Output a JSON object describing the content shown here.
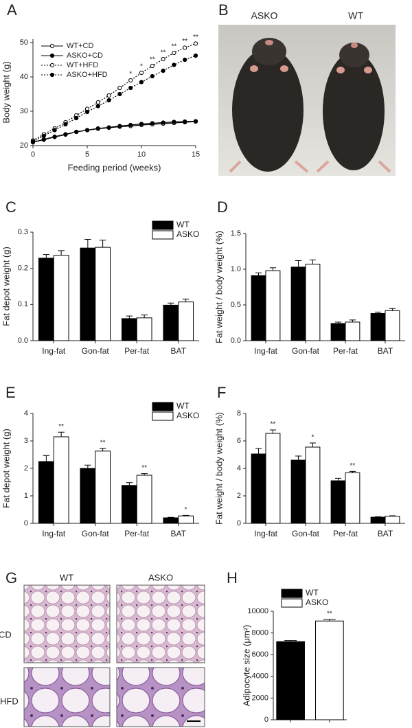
{
  "chart_data": [
    {
      "type": "line",
      "panel": "A",
      "xlabel": "Feeding period (weeks)",
      "ylabel": "Body weight (g)",
      "x": [
        0,
        1,
        2,
        3,
        4,
        5,
        6,
        7,
        8,
        9,
        10,
        11,
        12,
        13,
        14,
        15
      ],
      "xlim": [
        0,
        15
      ],
      "xticks": [
        0,
        5,
        10,
        15
      ],
      "ylim": [
        20,
        51
      ],
      "yticks": [
        20,
        30,
        40,
        50
      ],
      "series": [
        {
          "name": "WT+CD",
          "color": "#000000",
          "line": "solid",
          "marker": "open",
          "values": [
            21,
            21.8,
            22.6,
            23.3,
            24,
            24.5,
            24.9,
            25.2,
            25.5,
            25.7,
            26,
            26.2,
            26.4,
            26.6,
            26.8,
            27
          ]
        },
        {
          "name": "ASKO+CD",
          "color": "#000000",
          "line": "solid",
          "marker": "filled",
          "values": [
            21,
            21.7,
            22.5,
            23.2,
            24,
            24.5,
            25,
            25.3,
            25.7,
            26,
            26.3,
            26.5,
            26.7,
            26.9,
            27,
            27.1
          ]
        },
        {
          "name": "WT+HFD",
          "color": "#000000",
          "line": "dotted",
          "marker": "open",
          "values": [
            21.5,
            23.3,
            25,
            26.8,
            28.8,
            30.7,
            32.6,
            34.6,
            36.8,
            39,
            41.2,
            43.2,
            45.2,
            47,
            48.5,
            49.7
          ]
        },
        {
          "name": "ASKO+HFD",
          "color": "#000000",
          "line": "dotted",
          "marker": "filled",
          "values": [
            21.2,
            22.8,
            24.5,
            26.2,
            28,
            29.8,
            31.5,
            33.2,
            35,
            36.8,
            38.5,
            40.2,
            41.8,
            43.5,
            45,
            46.2
          ]
        }
      ],
      "annotations": [
        {
          "x": 9,
          "text": "*"
        },
        {
          "x": 10,
          "text": "*"
        },
        {
          "x": 11,
          "text": "**"
        },
        {
          "x": 12,
          "text": "**"
        },
        {
          "x": 13,
          "text": "**"
        },
        {
          "x": 14,
          "text": "**"
        },
        {
          "x": 15,
          "text": "**"
        }
      ]
    },
    {
      "type": "image",
      "panel": "B",
      "labels": [
        "ASKO",
        "WT"
      ]
    },
    {
      "type": "bar",
      "panel": "C",
      "ylabel": "Fat depot weight (g)",
      "categories": [
        "Ing-fat",
        "Gon-fat",
        "Per-fat",
        "BAT"
      ],
      "ylim": [
        0,
        0.3
      ],
      "yticks": [
        {
          "value": 0,
          "label": "0.0"
        },
        0.1,
        0.2,
        0.3
      ],
      "legend": "upper right",
      "series": [
        {
          "name": "WT",
          "color": "#000000",
          "values": [
            0.228,
            0.256,
            0.061,
            0.098
          ],
          "errors": [
            0.01,
            0.024,
            0.007,
            0.006
          ]
        },
        {
          "name": "ASKO",
          "color": "#ffffff",
          "values": [
            0.236,
            0.258,
            0.063,
            0.107
          ],
          "errors": [
            0.013,
            0.02,
            0.008,
            0.008
          ]
        }
      ]
    },
    {
      "type": "bar",
      "panel": "D",
      "ylabel": "Fat weight / body weight (%)",
      "categories": [
        "Ing-fat",
        "Gon-fat",
        "Per-fat",
        "BAT"
      ],
      "ylim": [
        0,
        1.5
      ],
      "yticks": [
        {
          "value": 0,
          "label": "0.0"
        },
        0.5,
        {
          "value": 1,
          "label": "1.0"
        },
        1.5
      ],
      "series": [
        {
          "name": "WT",
          "color": "#000000",
          "values": [
            0.91,
            1.03,
            0.24,
            0.38
          ],
          "errors": [
            0.04,
            0.09,
            0.02,
            0.02
          ]
        },
        {
          "name": "ASKO",
          "color": "#ffffff",
          "values": [
            0.98,
            1.07,
            0.26,
            0.42
          ],
          "errors": [
            0.04,
            0.06,
            0.03,
            0.03
          ]
        }
      ]
    },
    {
      "type": "bar",
      "panel": "E",
      "ylabel": "Fat depot weight (g)",
      "categories": [
        "Ing-fat",
        "Gon-fat",
        "Per-fat",
        "BAT"
      ],
      "ylim": [
        0,
        4
      ],
      "yticks": [
        0,
        1,
        2,
        3,
        4
      ],
      "legend": "upper right",
      "series": [
        {
          "name": "WT",
          "color": "#000000",
          "values": [
            2.25,
            2.0,
            1.38,
            0.2
          ],
          "errors": [
            0.22,
            0.12,
            0.1,
            0.02
          ]
        },
        {
          "name": "ASKO",
          "color": "#ffffff",
          "values": [
            3.15,
            2.63,
            1.75,
            0.27
          ],
          "errors": [
            0.17,
            0.1,
            0.06,
            0.02
          ],
          "stars": [
            "**",
            "**",
            "**",
            "*"
          ]
        }
      ]
    },
    {
      "type": "bar",
      "panel": "F",
      "ylabel": "Fat weight / body weight (%)",
      "categories": [
        "Ing-fat",
        "Gon-fat",
        "Per-fat",
        "BAT"
      ],
      "ylim": [
        0,
        8
      ],
      "yticks": [
        0,
        2,
        4,
        6,
        8
      ],
      "series": [
        {
          "name": "WT",
          "color": "#000000",
          "values": [
            5.05,
            4.6,
            3.1,
            0.45
          ],
          "errors": [
            0.4,
            0.3,
            0.18,
            0.03
          ]
        },
        {
          "name": "ASKO",
          "color": "#ffffff",
          "values": [
            6.55,
            5.55,
            3.68,
            0.52
          ],
          "errors": [
            0.25,
            0.3,
            0.1,
            0.03
          ],
          "stars": [
            "**",
            "*",
            "**",
            null
          ]
        }
      ]
    },
    {
      "type": "image",
      "panel": "G",
      "columns": [
        "WT",
        "ASKO"
      ],
      "rows": [
        "CD",
        "HFD"
      ]
    },
    {
      "type": "bar",
      "panel": "H",
      "ylabel": "Adipocyte size (μm²)",
      "ylim": [
        0,
        10000
      ],
      "yticks": [
        0,
        2000,
        4000,
        6000,
        8000,
        10000
      ],
      "legend": "upper left",
      "series": [
        {
          "name": "WT",
          "color": "#000000",
          "values": [
            7200
          ],
          "errors": [
            100
          ]
        },
        {
          "name": "ASKO",
          "color": "#ffffff",
          "values": [
            9100
          ],
          "errors": [
            150
          ],
          "stars": [
            "**"
          ]
        }
      ]
    }
  ]
}
